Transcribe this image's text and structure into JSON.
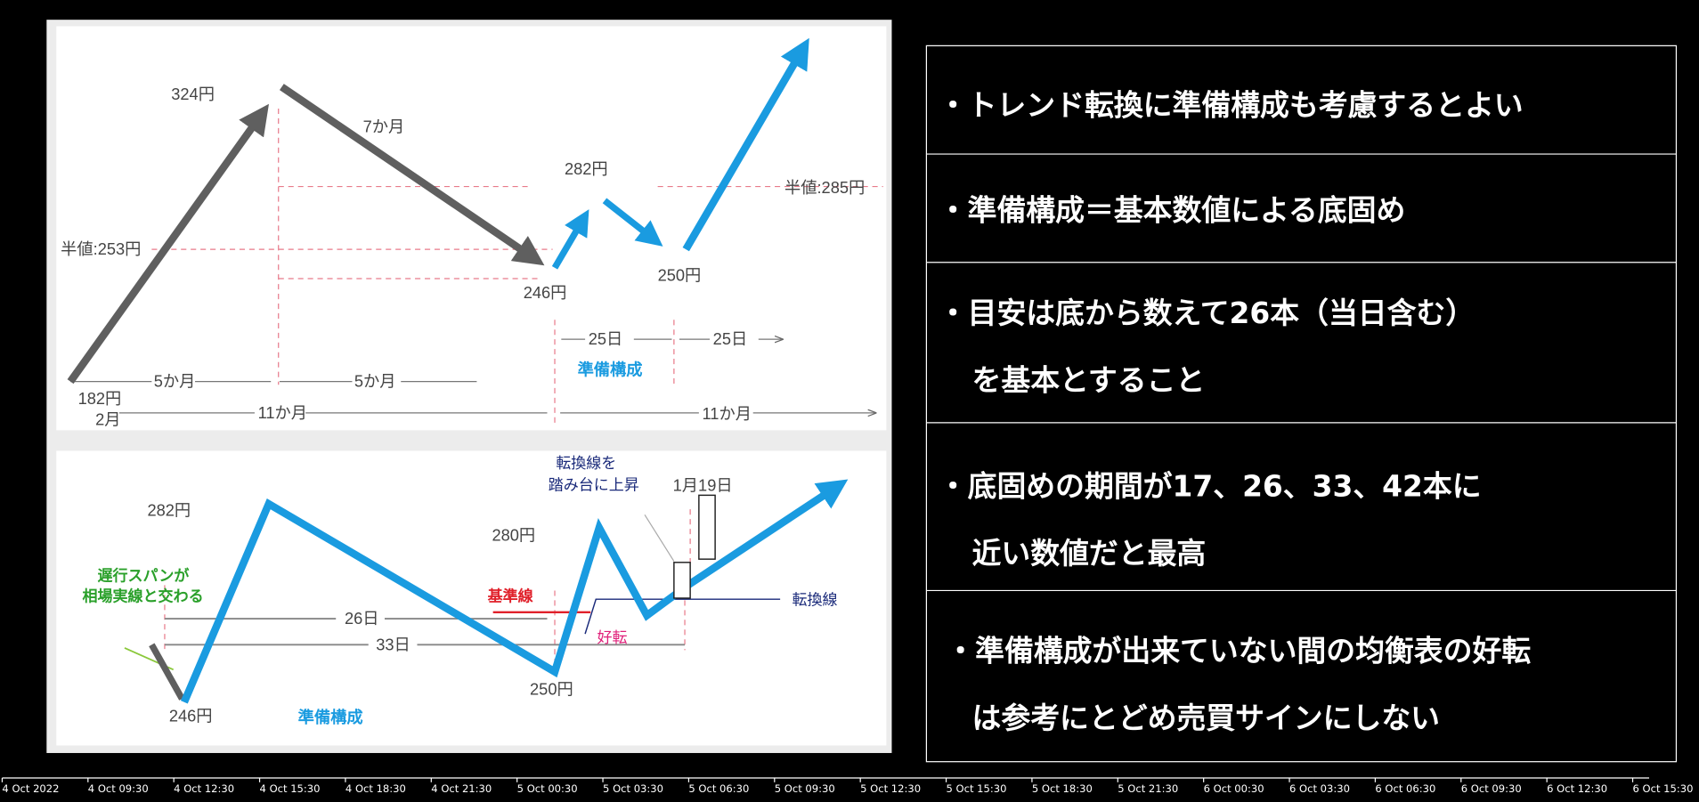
{
  "top_diagram": {
    "peak": "324円",
    "decline_period": "7か月",
    "half_value_low": "半値:253円",
    "start_price": "182円",
    "period_a": "5か月",
    "period_b": "5か月",
    "start_month": "2月",
    "span_left": "11か月",
    "low_1": "246円",
    "rebound": "282円",
    "low_2": "250円",
    "half_value_high": "半値:285円",
    "days_1": "25日",
    "days_2": "25日",
    "preparation": "準備構成",
    "span_right": "11か月"
  },
  "bottom_diagram": {
    "high_1": "282円",
    "high_2": "280円",
    "low_1": "246円",
    "low_2": "250円",
    "preparation": "準備構成",
    "lagging_line1": "遅行スパンが",
    "lagging_line2": "相場実線と交わる",
    "base_line": "基準線",
    "conversion_line": "転換線",
    "bullish_cross": "好転",
    "note_line1": "転換線を",
    "note_line2": "踏み台に上昇",
    "date": "1月19日",
    "days_26": "26日",
    "days_33": "33日"
  },
  "points": [
    {
      "line1": "・トレンド転換に準備構成も考慮するとよい"
    },
    {
      "line1": "・準備構成＝基本数値による底固め"
    },
    {
      "line1": "・目安は底から数えて26本（当日含む）",
      "line2": "を基本とすること"
    },
    {
      "line1": "・底固めの期間が17、26、33、42本に",
      "line2": "近い数値だと最高"
    },
    {
      "line1": "・準備構成が出来ていない間の均衡表の好転",
      "line2": "は参考にとどめ売買サインにしない"
    }
  ],
  "time_axis": [
    "4 Oct 2022",
    "4 Oct 09:30",
    "4 Oct 12:30",
    "4 Oct 15:30",
    "4 Oct 18:30",
    "4 Oct 21:30",
    "5 Oct 00:30",
    "5 Oct 03:30",
    "5 Oct 06:30",
    "5 Oct 09:30",
    "5 Oct 12:30",
    "5 Oct 15:30",
    "5 Oct 18:30",
    "5 Oct 21:30",
    "6 Oct 00:30",
    "6 Oct 03:30",
    "6 Oct 06:30",
    "6 Oct 09:30",
    "6 Oct 12:30",
    "6 Oct 15:30"
  ],
  "colors": {
    "gray_arrow": "#5f5f5f",
    "blue": "#1a9be0",
    "dash": "#e87a8a"
  }
}
